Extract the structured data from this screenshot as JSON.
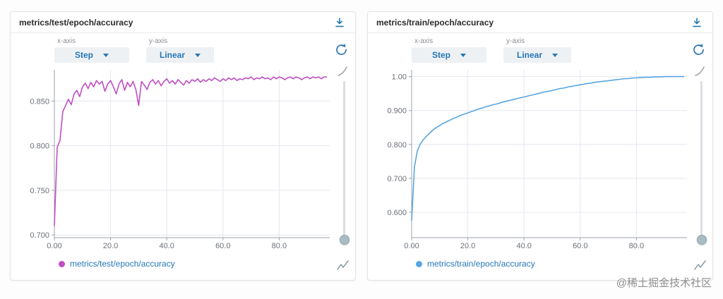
{
  "watermark": "@稀土掘金技术社区",
  "colors": {
    "accent": "#2577b5",
    "test_line": "#bf4fc4",
    "train_line": "#58a5e0"
  },
  "panels": [
    {
      "title": "metrics/test/epoch/accuracy",
      "xaxis_label": "x-axis",
      "xaxis_value": "Step",
      "yaxis_label": "y-axis",
      "yaxis_value": "Linear"
    },
    {
      "title": "metrics/train/epoch/accuracy",
      "xaxis_label": "x-axis",
      "xaxis_value": "Step",
      "yaxis_label": "y-axis",
      "yaxis_value": "Linear"
    }
  ],
  "chart_data": [
    {
      "type": "line",
      "title": "metrics/test/epoch/accuracy",
      "legend": "metrics/test/epoch/accuracy",
      "color": "#bf4fc4",
      "xlabel": "Step",
      "ylabel": "accuracy",
      "xlim": [
        0,
        98
      ],
      "ylim": [
        0.697,
        0.885
      ],
      "xticks": [
        0,
        20,
        40,
        60,
        80
      ],
      "xtick_labels": [
        "0.00",
        "20.0",
        "40.0",
        "60.0",
        "80.0"
      ],
      "yticks": [
        0.7,
        0.75,
        0.8,
        0.85
      ],
      "ytick_labels": [
        "0.700",
        "0.750",
        "0.800",
        "0.850"
      ],
      "x_is_index": true,
      "values": [
        0.71,
        0.798,
        0.806,
        0.838,
        0.845,
        0.852,
        0.846,
        0.858,
        0.862,
        0.855,
        0.866,
        0.87,
        0.864,
        0.871,
        0.866,
        0.873,
        0.869,
        0.872,
        0.861,
        0.869,
        0.873,
        0.866,
        0.858,
        0.869,
        0.874,
        0.862,
        0.871,
        0.866,
        0.872,
        0.863,
        0.845,
        0.872,
        0.868,
        0.863,
        0.871,
        0.874,
        0.869,
        0.873,
        0.867,
        0.872,
        0.875,
        0.87,
        0.873,
        0.869,
        0.874,
        0.871,
        0.868,
        0.873,
        0.87,
        0.874,
        0.872,
        0.875,
        0.871,
        0.874,
        0.872,
        0.875,
        0.873,
        0.876,
        0.874,
        0.872,
        0.875,
        0.873,
        0.876,
        0.874,
        0.876,
        0.873,
        0.875,
        0.874,
        0.876,
        0.875,
        0.877,
        0.874,
        0.876,
        0.875,
        0.877,
        0.875,
        0.876,
        0.874,
        0.877,
        0.875,
        0.877,
        0.876,
        0.874,
        0.876,
        0.877,
        0.875,
        0.877,
        0.876,
        0.874,
        0.876,
        0.877,
        0.875,
        0.877,
        0.876,
        0.877,
        0.875,
        0.877,
        0.877
      ]
    },
    {
      "type": "line",
      "title": "metrics/train/epoch/accuracy",
      "legend": "metrics/train/epoch/accuracy",
      "color": "#58a5e0",
      "xlabel": "Step",
      "ylabel": "accuracy",
      "xlim": [
        0,
        98
      ],
      "ylim": [
        0.525,
        1.02
      ],
      "xticks": [
        0,
        20,
        40,
        60,
        80
      ],
      "xtick_labels": [
        "0.00",
        "20.0",
        "40.0",
        "60.0",
        "80.0"
      ],
      "yticks": [
        0.6,
        0.7,
        0.8,
        0.9,
        1.0
      ],
      "ytick_labels": [
        "0.600",
        "0.700",
        "0.800",
        "0.900",
        "1.00"
      ],
      "x_is_index": true,
      "values": [
        0.575,
        0.735,
        0.78,
        0.8,
        0.812,
        0.822,
        0.83,
        0.838,
        0.845,
        0.851,
        0.856,
        0.861,
        0.865,
        0.869,
        0.873,
        0.877,
        0.88,
        0.884,
        0.887,
        0.89,
        0.893,
        0.896,
        0.899,
        0.902,
        0.905,
        0.907,
        0.91,
        0.912,
        0.915,
        0.917,
        0.919,
        0.921,
        0.924,
        0.926,
        0.928,
        0.93,
        0.932,
        0.934,
        0.936,
        0.938,
        0.94,
        0.942,
        0.944,
        0.946,
        0.948,
        0.95,
        0.952,
        0.954,
        0.956,
        0.957,
        0.959,
        0.961,
        0.963,
        0.965,
        0.966,
        0.968,
        0.97,
        0.971,
        0.973,
        0.974,
        0.976,
        0.977,
        0.979,
        0.98,
        0.981,
        0.983,
        0.984,
        0.985,
        0.986,
        0.987,
        0.988,
        0.989,
        0.99,
        0.991,
        0.992,
        0.993,
        0.994,
        0.994,
        0.995,
        0.996,
        0.996,
        0.997,
        0.997,
        0.998,
        0.998,
        0.998,
        0.999,
        0.999,
        0.999,
        0.999,
        1.0,
        1.0,
        1.0,
        1.0,
        1.0,
        1.0,
        1.0,
        1.0
      ]
    }
  ]
}
